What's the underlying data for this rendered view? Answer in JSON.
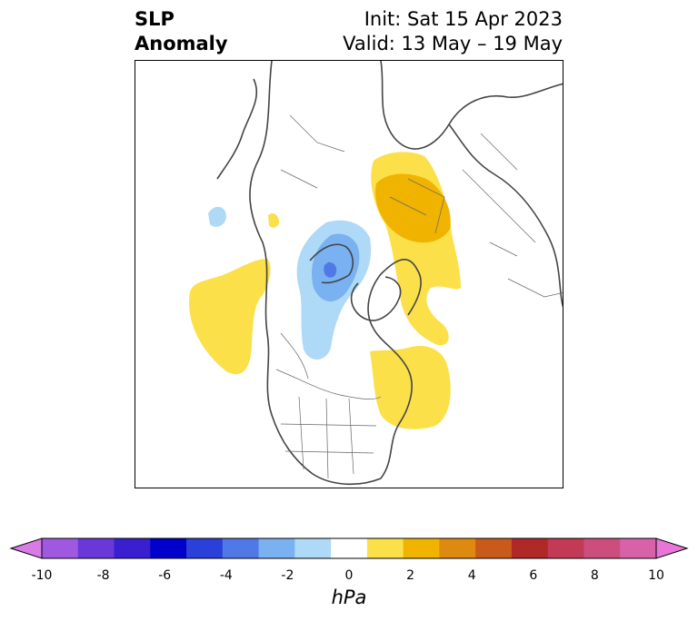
{
  "title": {
    "left_line1": "SLP",
    "left_line2": "Anomaly",
    "init": "Init: Sat 15 Apr 2023",
    "valid": "Valid: 13 May – 19 May"
  },
  "colorbar": {
    "unit": "hPa",
    "ticks": [
      "-10",
      "-8",
      "-6",
      "-4",
      "-2",
      "0",
      "2",
      "4",
      "6",
      "8",
      "10"
    ],
    "colors": [
      "#d97be6",
      "#9e59e0",
      "#6a38d8",
      "#3a1fd0",
      "#0000cc",
      "#2a40d8",
      "#5078e6",
      "#7ab1f0",
      "#aed9f7",
      "#ffffff",
      "#fbe04a",
      "#f0b400",
      "#de8a10",
      "#c85a1a",
      "#b02828",
      "#c23a55",
      "#cc4e7c",
      "#d862a8",
      "#e876d8"
    ]
  },
  "map": {
    "projection": "North Polar Stereographic",
    "anomaly_regions": [
      {
        "name": "Northeast Pacific high anomaly",
        "sign": "positive",
        "peak_hPa": 1.5
      },
      {
        "name": "Hudson Bay / Northern Canada low anomaly",
        "sign": "negative",
        "peak_hPa": -4
      },
      {
        "name": "Eastern Canada / North Atlantic high anomaly",
        "sign": "positive",
        "peak_hPa": 1.5
      },
      {
        "name": "Scandinavia / Western Russia high anomaly",
        "sign": "positive",
        "peak_hPa": 3
      },
      {
        "name": "Small weak low over East Asia",
        "sign": "negative",
        "peak_hPa": -1.5
      }
    ]
  }
}
